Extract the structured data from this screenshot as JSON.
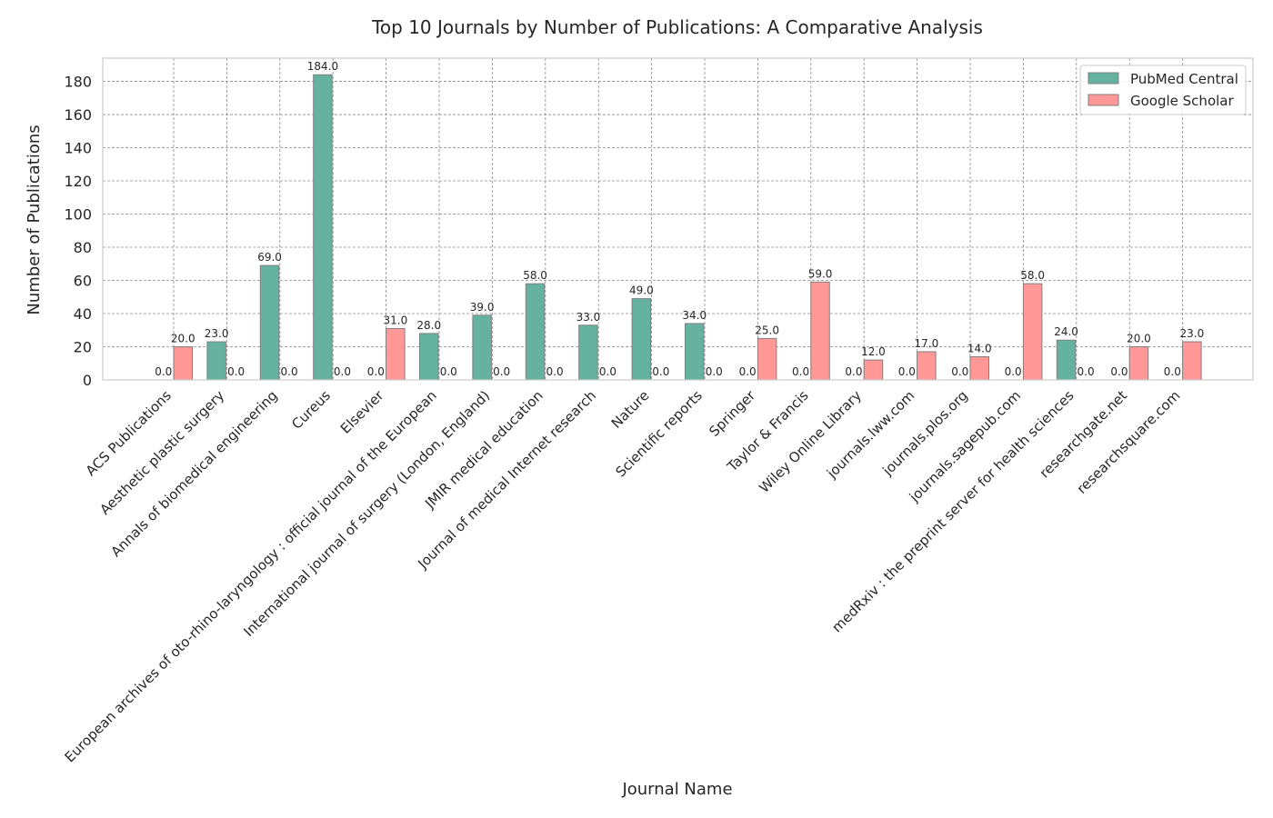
{
  "chart_data": {
    "type": "bar",
    "title": "Top 10 Journals by Number of Publications: A Comparative Analysis",
    "xlabel": "Journal Name",
    "ylabel": "Number of Publications",
    "ylim": [
      0,
      194
    ],
    "yticks": [
      0,
      20,
      40,
      60,
      80,
      100,
      120,
      140,
      160,
      180
    ],
    "grid": true,
    "legend_position": "top-right",
    "categories": [
      "ACS Publications",
      "Aesthetic plastic surgery",
      "Annals of biomedical engineering",
      "Cureus",
      "Elsevier",
      "European archives of oto-rhino-laryngology : official journal of the European",
      "International journal of surgery (London, England)",
      "JMIR medical education",
      "Journal of medical Internet research",
      "Nature",
      "Scientific reports",
      "Springer",
      "Taylor & Francis",
      "Wiley Online Library",
      "journals.lww.com",
      "journals.plos.org",
      "journals.sagepub.com",
      "medRxiv : the preprint server for health sciences",
      "researchgate.net",
      "researchsquare.com"
    ],
    "series": [
      {
        "name": "PubMed Central",
        "color": "#66b2a0",
        "values": [
          0,
          23,
          69,
          184,
          0,
          28,
          39,
          58,
          33,
          49,
          34,
          0,
          0,
          0,
          0,
          0,
          0,
          24,
          0,
          0
        ]
      },
      {
        "name": "Google Scholar",
        "color": "#ff9896",
        "values": [
          20,
          0,
          0,
          0,
          31,
          0,
          0,
          0,
          0,
          0,
          0,
          25,
          59,
          12,
          17,
          14,
          58,
          0,
          20,
          23
        ]
      }
    ]
  }
}
